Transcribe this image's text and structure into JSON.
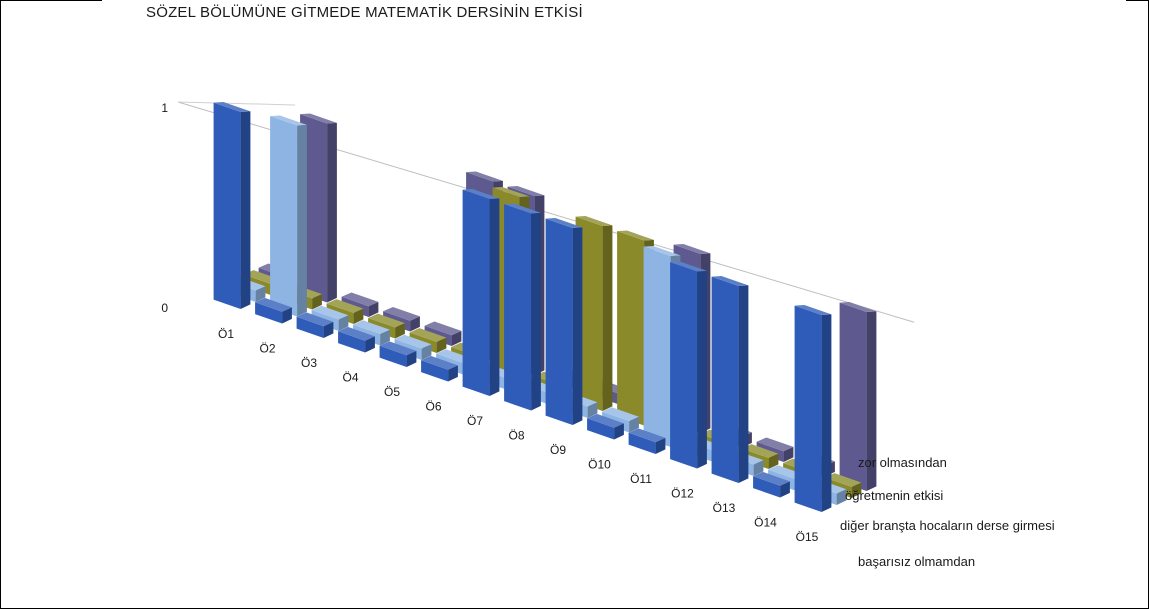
{
  "chart_data": {
    "type": "bar",
    "title": "SÖZEL BÖLÜMÜNE GİTMEDE MATEMATİK DERSİNİN ETKİSİ",
    "categories": [
      "Ö1",
      "Ö2",
      "Ö3",
      "Ö4",
      "Ö5",
      "Ö6",
      "Ö7",
      "Ö8",
      "Ö9",
      "Ö10",
      "Ö11",
      "Ö12",
      "Ö13",
      "Ö14",
      "Ö15"
    ],
    "series": [
      {
        "name": "başarısız olmamdan",
        "color": "#2e5cb8",
        "values": [
          1,
          0,
          0,
          0,
          0,
          0,
          1,
          1,
          1,
          0,
          0,
          1,
          1,
          0,
          1
        ]
      },
      {
        "name": "diğer branşta hocaların derse girmesi",
        "color": "#8eb4e3",
        "values": [
          0,
          1,
          0,
          0,
          0,
          0,
          0,
          0,
          0,
          0,
          1,
          0,
          0,
          0,
          0
        ]
      },
      {
        "name": "öğretmenin etkisi",
        "color": "#8a8a2a",
        "values": [
          0,
          0,
          0,
          0,
          0,
          0,
          1,
          0,
          1,
          1,
          0,
          0,
          0,
          0,
          0
        ]
      },
      {
        "name": "zor olmasından",
        "color": "#5e5a90",
        "values": [
          0,
          1,
          0,
          0,
          0,
          1,
          1,
          0,
          0,
          0,
          1,
          0,
          0,
          0,
          1
        ]
      }
    ],
    "ytick_labels": [
      "0",
      "1"
    ],
    "ylim": [
      0,
      1
    ],
    "chart_style": "3d-column",
    "legend_position": "bottom-right"
  }
}
